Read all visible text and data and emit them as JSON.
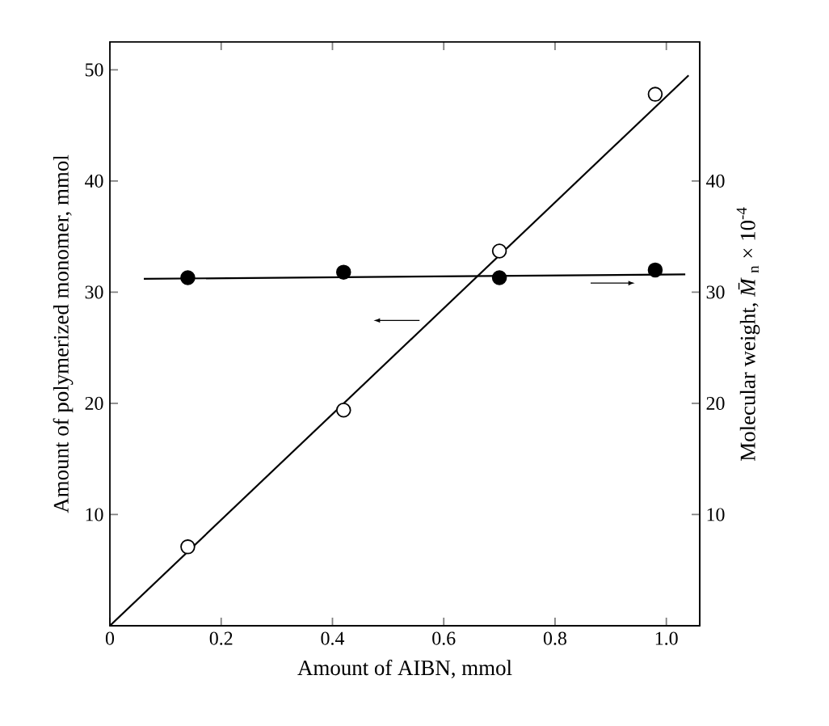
{
  "chart_data": {
    "type": "scatter",
    "xlabel": "Amount of AIBN, mmol",
    "ylabel": "Amount of polymerized monomer, mmol",
    "y2label": "Molecular weight, *M̄*$_{n}$ × 10$^{-4}$",
    "xlim": [
      0,
      1.06
    ],
    "ylim": [
      0,
      52.5
    ],
    "y2lim": [
      0,
      52.5
    ],
    "xticks": [
      0,
      0.2,
      0.4,
      0.6,
      0.8,
      {
        "value": 1.0,
        "label": "1.0"
      }
    ],
    "yticks": [
      10,
      20,
      30,
      40,
      50
    ],
    "y2ticks": [
      10,
      20,
      30,
      40
    ],
    "marker": "circle",
    "series": [
      {
        "type": "line",
        "marker": "none",
        "color": "#000000",
        "x": [
          0,
          1.04
        ],
        "values": [
          0,
          49.5
        ]
      },
      {
        "type": "line",
        "marker": "none",
        "color": "#000000",
        "axis": "y2",
        "x": [
          0.061,
          1.034
        ],
        "values": [
          31.2,
          31.6
        ]
      },
      {
        "color": "#ffffff",
        "x": [
          0.14,
          0.42,
          0.7,
          0.98
        ],
        "values": [
          7.1,
          19.4,
          33.7,
          47.8
        ]
      },
      {
        "color": "#000000",
        "axis": "y2",
        "x": [
          0.14,
          0.42,
          0.7,
          0.98
        ],
        "values": [
          31.3,
          31.8,
          31.3,
          32.0
        ]
      }
    ]
  }
}
